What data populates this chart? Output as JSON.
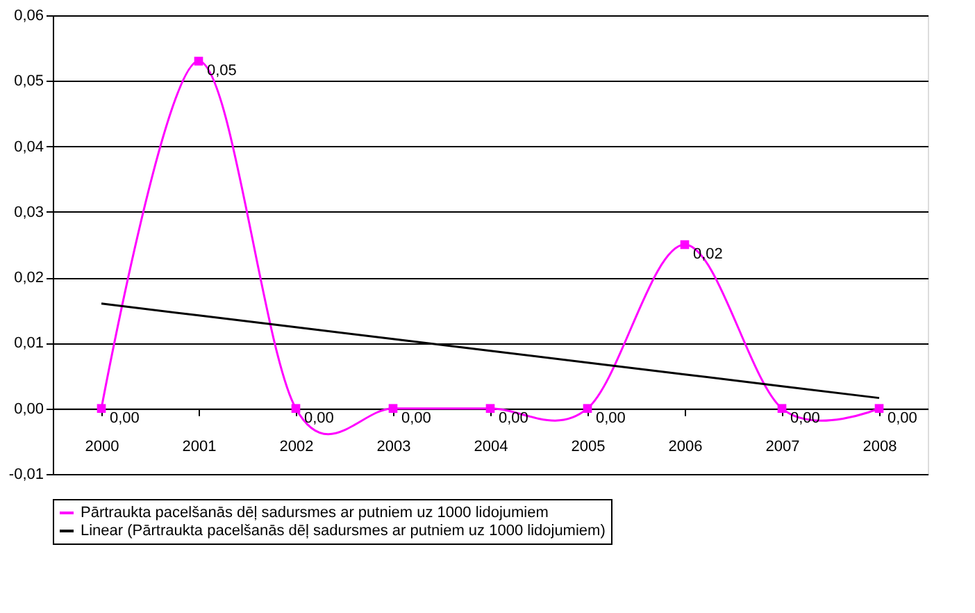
{
  "chart_data": {
    "type": "line",
    "categories": [
      "2000",
      "2001",
      "2002",
      "2003",
      "2004",
      "2005",
      "2006",
      "2007",
      "2008"
    ],
    "series": [
      {
        "name": "Pārtraukta pacelšanās dēļ sadursmes ar putniem uz 1000 lidojumiem",
        "color": "#ff00ff",
        "marker": "square",
        "values": [
          0,
          0.053,
          0,
          0,
          0,
          0,
          0.025,
          0,
          0
        ],
        "value_labels": [
          "0,00",
          "0,05",
          "0,00",
          "0,00",
          "0,00",
          "0,00",
          "0,02",
          "0,00",
          "0,00"
        ]
      },
      {
        "name": "Linear (Pārtraukta pacelšanās dēļ sadursmes ar putniem uz 1000 lidojumiem)",
        "color": "#000000",
        "marker": "none",
        "values": [
          0.016,
          0.0142,
          0.0124,
          0.0106,
          0.0088,
          0.007,
          0.0052,
          0.0034,
          0.0016
        ]
      }
    ],
    "ylim": [
      -0.01,
      0.06
    ],
    "yticks": [
      {
        "value": -0.01,
        "label": "-0,01"
      },
      {
        "value": 0,
        "label": "0,00"
      },
      {
        "value": 0.01,
        "label": "0,01"
      },
      {
        "value": 0.02,
        "label": "0,02"
      },
      {
        "value": 0.03,
        "label": "0,03"
      },
      {
        "value": 0.04,
        "label": "0,04"
      },
      {
        "value": 0.05,
        "label": "0,05"
      },
      {
        "value": 0.06,
        "label": "0,06"
      }
    ],
    "grid": "y",
    "legend": "bottom",
    "line_style": "solid"
  }
}
